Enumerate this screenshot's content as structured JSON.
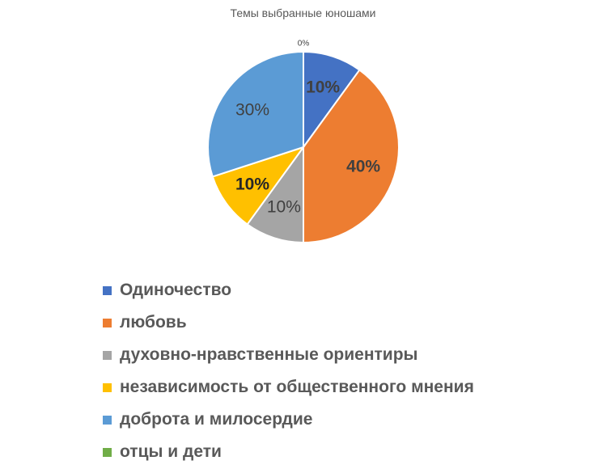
{
  "chart_data": {
    "type": "pie",
    "title": "Темы выбранные юношами",
    "legend_position": "bottom",
    "slices": [
      {
        "label": "Одиночество",
        "value": 10,
        "value_label": "10%",
        "color": "#4472C4",
        "label_color": "#404040",
        "label_weight": "bold"
      },
      {
        "label": "любовь",
        "value": 40,
        "value_label": "40%",
        "color": "#ED7D31",
        "label_color": "#404040",
        "label_weight": "bold"
      },
      {
        "label": "духовно-нравственные ориентиры",
        "value": 10,
        "value_label": "10%",
        "color": "#A5A5A5",
        "label_color": "#404040",
        "label_weight": "normal"
      },
      {
        "label": "независимость от общественного мнения",
        "value": 10,
        "value_label": "10%",
        "color": "#FFC000",
        "label_color": "#262626",
        "label_weight": "bold"
      },
      {
        "label": "доброта и милосердие",
        "value": 30,
        "value_label": "30%",
        "color": "#5B9BD5",
        "label_color": "#404040",
        "label_weight": "normal"
      },
      {
        "label": "отцы и дети",
        "value": 0,
        "value_label": "0%",
        "color": "#70AD47",
        "label_color": "#404040",
        "label_weight": "normal"
      }
    ]
  }
}
